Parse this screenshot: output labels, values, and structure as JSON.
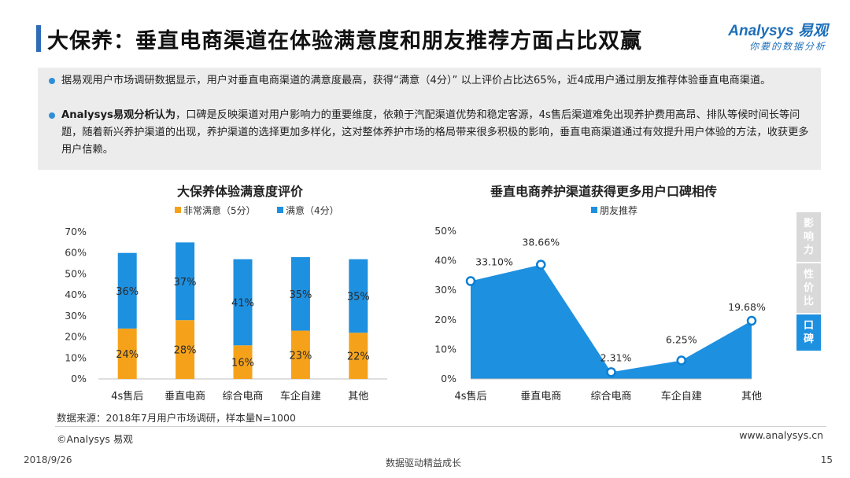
{
  "header": {
    "title": "大保养：垂直电商渠道在体验满意度和朋友推荐方面占比双赢",
    "logo_main": "Analysys 易观",
    "logo_sub": "你要的数据分析"
  },
  "summary": {
    "bullet1": "据易观用户市场调研数据显示，用户对垂直电商渠道的满意度最高，获得“满意（4分）” 以上评价占比达65%，近4成用户通过朋友推荐体验垂直电商渠道。",
    "bullet2_bold": "Analysys易观分析认为",
    "bullet2": "，口碑是反映渠道对用户影响力的重要维度，依赖于汽配渠道优势和稳定客源，4s售后渠道难免出现养护费用高昂、排队等候时间长等问题，随着新兴养护渠道的出现，养护渠道的选择更加多样化，这对整体养护市场的格局带来很多积极的影响，垂直电商渠道通过有效提升用户体验的方法，收获更多用户信赖。"
  },
  "colors": {
    "orange": "#f5a21a",
    "blue": "#1e90e0",
    "blue_dark": "#0d7fd4",
    "title_accent": "#2f6cb8",
    "tab_inactive": "#d9d9d9"
  },
  "chart_data": [
    {
      "type": "bar",
      "stacked": true,
      "title": "大保养体验满意度评价",
      "categories": [
        "4s售后",
        "垂直电商",
        "综合电商",
        "车企自建",
        "其他"
      ],
      "series": [
        {
          "name": "非常满意（5分）",
          "values": [
            24,
            28,
            16,
            23,
            22
          ],
          "labels": [
            "24%",
            "28%",
            "16%",
            "23%",
            "22%"
          ],
          "color": "#f5a21a"
        },
        {
          "name": "满意（4分）",
          "values": [
            36,
            37,
            41,
            35,
            35
          ],
          "labels": [
            "36%",
            "37%",
            "41%",
            "35%",
            "35%"
          ],
          "color": "#1e90e0"
        }
      ],
      "yticks": [
        "0%",
        "10%",
        "20%",
        "30%",
        "40%",
        "50%",
        "60%",
        "70%"
      ],
      "ylim": [
        0,
        70
      ],
      "legend": "top",
      "grid": false
    },
    {
      "type": "area",
      "title": "垂直电商养护渠道获得更多用户口碑相传",
      "categories": [
        "4s售后",
        "垂直电商",
        "综合电商",
        "车企自建",
        "其他"
      ],
      "series": [
        {
          "name": "朋友推荐",
          "values": [
            33.1,
            38.66,
            2.31,
            6.25,
            19.68
          ],
          "labels": [
            "33.10%",
            "38.66%",
            "2.31%",
            "6.25%",
            "19.68%"
          ],
          "color": "#1e90e0"
        }
      ],
      "yticks": [
        "0%",
        "10%",
        "20%",
        "30%",
        "40%",
        "50%"
      ],
      "ylim": [
        0,
        50
      ],
      "legend": "top",
      "grid": false
    }
  ],
  "side_tabs": [
    {
      "label": "影响力",
      "active": false
    },
    {
      "label": "性价比",
      "active": false
    },
    {
      "label": "口碑",
      "active": true
    }
  ],
  "footer": {
    "source": "数据来源：2018年7月用户市场调研，样本量N=1000",
    "copyright": "©Analysys 易观",
    "site": "www.analysys.cn",
    "date": "2018/9/26",
    "slogan": "数据驱动精益成长",
    "page": "15"
  }
}
